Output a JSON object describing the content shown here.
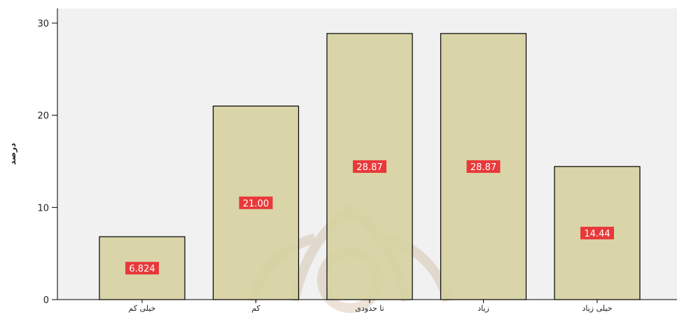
{
  "chart_data": {
    "type": "bar",
    "title": "",
    "xlabel": "",
    "ylabel": "درصد",
    "categories": [
      "خیلی کم",
      "کم",
      "تا حدودی",
      "زیاد",
      "خیلی زیاد"
    ],
    "values": [
      6.824,
      21.0,
      28.87,
      28.87,
      14.44
    ],
    "data_labels": [
      "6.824",
      "21.00",
      "28.87",
      "28.87",
      "14.44"
    ],
    "ylim": [
      0,
      30
    ],
    "yticks": [
      0,
      10,
      20,
      30
    ],
    "grid": false,
    "legend": "none",
    "colors": {
      "plot_background": "#f1f1f1",
      "bar_fill": "#d6d1a0",
      "bar_stroke": "#000000",
      "label_background": "#e8393a",
      "label_text": "#ffffff",
      "watermark": "#c9ad8e"
    }
  }
}
